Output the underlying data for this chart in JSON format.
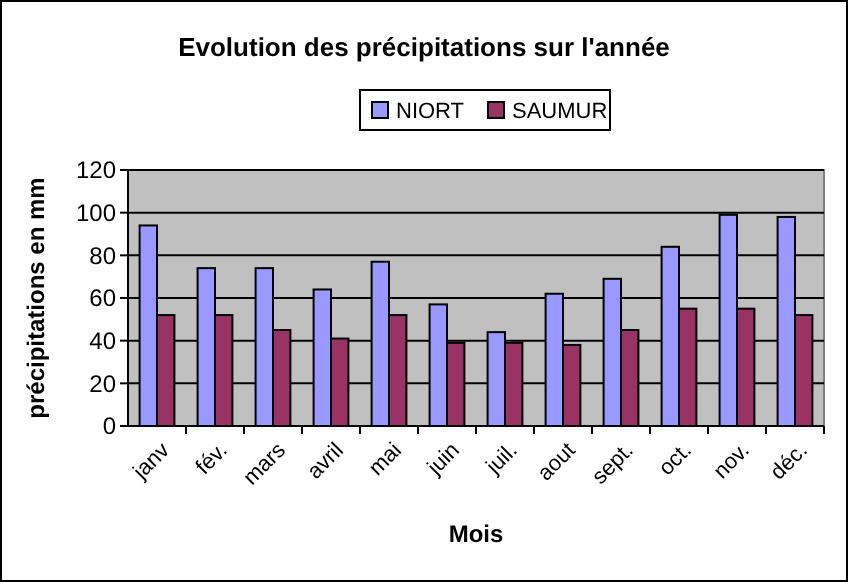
{
  "chart_data": {
    "type": "bar",
    "title": "Evolution des précipitations sur l'année",
    "xlabel": "Mois",
    "ylabel": "précipitations en mm",
    "categories": [
      "janv",
      "fév.",
      "mars",
      "avril",
      "mai",
      "juin",
      "juil.",
      "aout",
      "sept.",
      "oct.",
      "nov.",
      "déc."
    ],
    "series": [
      {
        "name": "NIORT",
        "color": "#9999ff",
        "values": [
          94,
          74,
          74,
          64,
          77,
          57,
          44,
          62,
          69,
          84,
          99,
          98
        ]
      },
      {
        "name": "SAUMUR",
        "color": "#993366",
        "values": [
          52,
          52,
          45,
          41,
          52,
          39,
          39,
          38,
          45,
          55,
          55,
          52
        ]
      }
    ],
    "ylim": [
      0,
      120
    ],
    "yticks": [
      0,
      20,
      40,
      60,
      80,
      100,
      120
    ],
    "grid": "y",
    "legend": "top right"
  }
}
